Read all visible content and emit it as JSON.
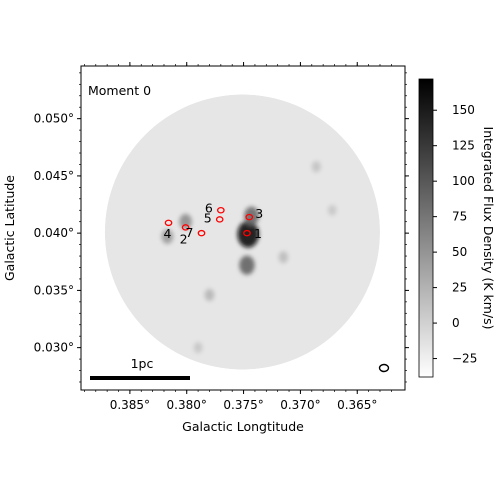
{
  "chart_data": {
    "type": "heatmap",
    "panel_label": "Moment 0",
    "xlabel": "Galactic Longtitude",
    "ylabel": "Galactic Latitude",
    "colorbar_label": "Integrated Flux Density (K km/s)",
    "x_unit_suffix": "°",
    "y_unit_suffix": "°",
    "xlim": [
      0.3893,
      0.3608
    ],
    "ylim": [
      0.0263,
      0.0546
    ],
    "xticks": [
      0.385,
      0.38,
      0.375,
      0.37,
      0.365
    ],
    "xtick_labels": [
      "0.385°",
      "0.380°",
      "0.375°",
      "0.370°",
      "0.365°"
    ],
    "yticks": [
      0.03,
      0.035,
      0.04,
      0.045,
      0.05
    ],
    "ytick_labels": [
      "0.030°",
      "0.035°",
      "0.040°",
      "0.045°",
      "0.050°"
    ],
    "colorbar_range": [
      -38,
      172
    ],
    "colorbar_ticks": [
      -25,
      0,
      25,
      50,
      75,
      100,
      125,
      150
    ],
    "colorbar_tick_labels": [
      "−25",
      "0",
      "25",
      "50",
      "75",
      "100",
      "125",
      "150"
    ],
    "colormap": "gray_r",
    "map_center": [
      0.3751,
      0.0401
    ],
    "map_radius_deg": 0.0121,
    "emission_peaks": [
      {
        "l": 0.3746,
        "b": 0.0399,
        "flux": 165
      },
      {
        "l": 0.3747,
        "b": 0.0372,
        "flux": 90
      },
      {
        "l": 0.3743,
        "b": 0.0415,
        "flux": 85
      },
      {
        "l": 0.3801,
        "b": 0.041,
        "flux": 55
      },
      {
        "l": 0.3817,
        "b": 0.0397,
        "flux": 45
      },
      {
        "l": 0.378,
        "b": 0.0346,
        "flux": 22
      },
      {
        "l": 0.3715,
        "b": 0.0379,
        "flux": 18
      },
      {
        "l": 0.379,
        "b": 0.03,
        "flux": 10
      },
      {
        "l": 0.3686,
        "b": 0.0458,
        "flux": 12
      },
      {
        "l": 0.3672,
        "b": 0.042,
        "flux": 8
      }
    ],
    "sources": [
      {
        "id": "1",
        "l": 0.3747,
        "b": 0.04
      },
      {
        "id": "2",
        "l": 0.3801,
        "b": 0.0405
      },
      {
        "id": "3",
        "l": 0.3745,
        "b": 0.0414
      },
      {
        "id": "4",
        "l": 0.3816,
        "b": 0.0409
      },
      {
        "id": "5",
        "l": 0.3771,
        "b": 0.0412
      },
      {
        "id": "6",
        "l": 0.377,
        "b": 0.042
      },
      {
        "id": "7",
        "l": 0.3787,
        "b": 0.04
      }
    ],
    "scale_bar": {
      "label": "1pc"
    },
    "beam": {
      "present": true
    }
  }
}
